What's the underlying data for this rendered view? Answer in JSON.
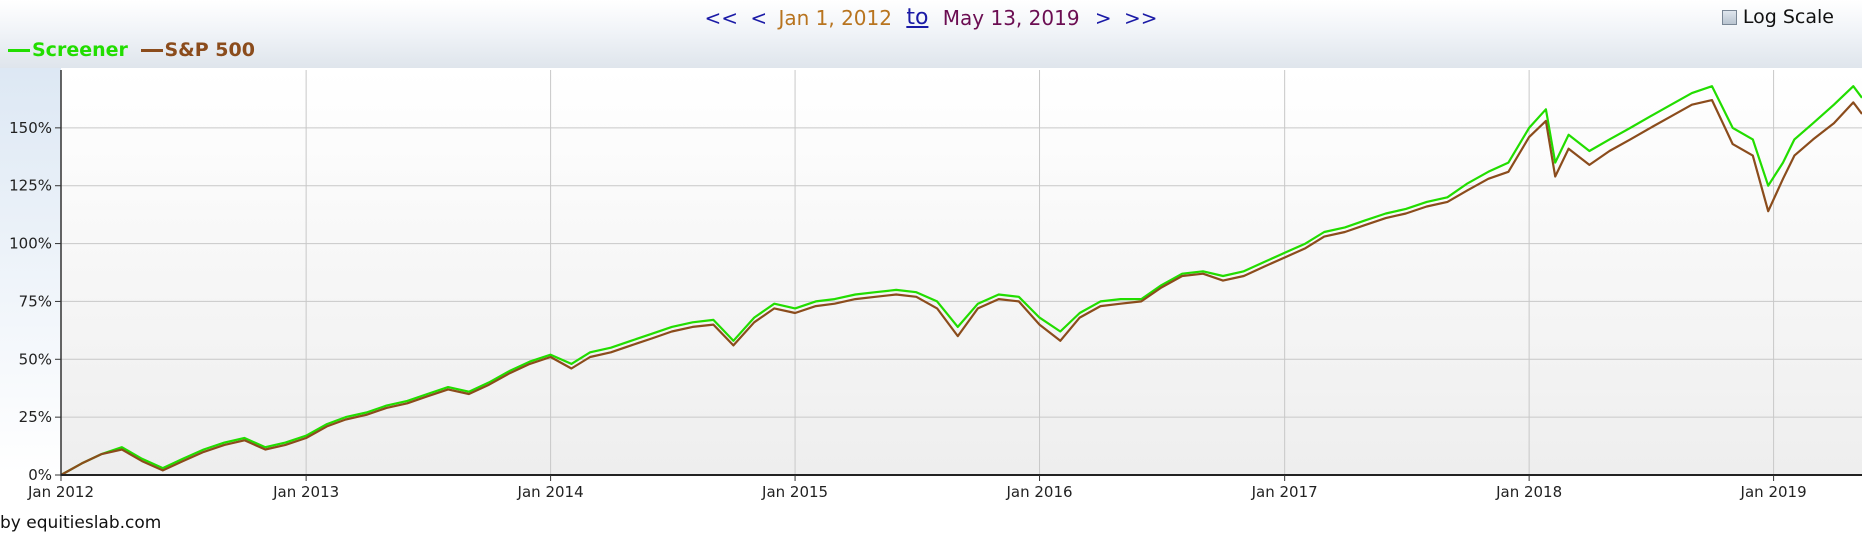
{
  "nav": {
    "first": "<<",
    "prev": "<",
    "start_date": "Jan 1, 2012",
    "to": "to",
    "end_date": "May 13, 2019",
    "next": ">",
    "last": ">>"
  },
  "log_scale": {
    "label": "Log Scale",
    "checked": false
  },
  "credit": "by equitieslab.com",
  "colors": {
    "screener": "#22dd00",
    "sp500": "#8b4c1c"
  },
  "chart_data": {
    "type": "line",
    "title": "",
    "xlabel": "",
    "ylabel": "",
    "x_ticks": [
      "Jan 2012",
      "Jan 2013",
      "Jan 2014",
      "Jan 2015",
      "Jan 2016",
      "Jan 2017",
      "Jan 2018",
      "Jan 2019"
    ],
    "y_ticks": [
      "0%",
      "25%",
      "50%",
      "75%",
      "100%",
      "125%",
      "150%"
    ],
    "ylim": [
      0,
      175
    ],
    "xlim": [
      "2012-01-01",
      "2019-05-13"
    ],
    "grid": true,
    "legend": "top-left",
    "series": [
      {
        "name": "Screener",
        "x": [
          "2012-01-01",
          "2012-02-01",
          "2012-03-01",
          "2012-04-01",
          "2012-05-01",
          "2012-06-01",
          "2012-07-01",
          "2012-08-01",
          "2012-09-01",
          "2012-10-01",
          "2012-11-01",
          "2012-12-01",
          "2013-01-01",
          "2013-02-01",
          "2013-03-01",
          "2013-04-01",
          "2013-05-01",
          "2013-06-01",
          "2013-07-01",
          "2013-08-01",
          "2013-09-01",
          "2013-10-01",
          "2013-11-01",
          "2013-12-01",
          "2014-01-01",
          "2014-02-01",
          "2014-03-01",
          "2014-04-01",
          "2014-05-01",
          "2014-06-01",
          "2014-07-01",
          "2014-08-01",
          "2014-09-01",
          "2014-10-01",
          "2014-11-01",
          "2014-12-01",
          "2015-01-01",
          "2015-02-01",
          "2015-03-01",
          "2015-04-01",
          "2015-05-01",
          "2015-06-01",
          "2015-07-01",
          "2015-08-01",
          "2015-09-01",
          "2015-10-01",
          "2015-11-01",
          "2015-12-01",
          "2016-01-01",
          "2016-02-01",
          "2016-03-01",
          "2016-04-01",
          "2016-05-01",
          "2016-06-01",
          "2016-07-01",
          "2016-08-01",
          "2016-09-01",
          "2016-10-01",
          "2016-11-01",
          "2016-12-01",
          "2017-01-01",
          "2017-02-01",
          "2017-03-01",
          "2017-04-01",
          "2017-05-01",
          "2017-06-01",
          "2017-07-01",
          "2017-08-01",
          "2017-09-01",
          "2017-10-01",
          "2017-11-01",
          "2017-12-01",
          "2018-01-01",
          "2018-01-26",
          "2018-02-09",
          "2018-03-01",
          "2018-04-01",
          "2018-05-01",
          "2018-06-01",
          "2018-07-01",
          "2018-08-01",
          "2018-09-01",
          "2018-10-01",
          "2018-11-01",
          "2018-12-01",
          "2018-12-24",
          "2019-01-15",
          "2019-02-01",
          "2019-03-01",
          "2019-04-01",
          "2019-04-30",
          "2019-05-13"
        ],
        "values": [
          0,
          5,
          9,
          12,
          7,
          3,
          7,
          11,
          14,
          16,
          12,
          14,
          17,
          22,
          25,
          27,
          30,
          32,
          35,
          38,
          36,
          40,
          45,
          49,
          52,
          48,
          53,
          55,
          58,
          61,
          64,
          66,
          67,
          58,
          68,
          74,
          72,
          75,
          76,
          78,
          79,
          80,
          79,
          75,
          64,
          74,
          78,
          77,
          68,
          62,
          70,
          75,
          76,
          76,
          82,
          87,
          88,
          86,
          88,
          92,
          96,
          100,
          105,
          107,
          110,
          113,
          115,
          118,
          120,
          126,
          131,
          135,
          150,
          158,
          135,
          147,
          140,
          145,
          150,
          155,
          160,
          165,
          168,
          150,
          145,
          125,
          135,
          145,
          152,
          160,
          168,
          163
        ]
      },
      {
        "name": "S&P 500",
        "x": [
          "2012-01-01",
          "2012-02-01",
          "2012-03-01",
          "2012-04-01",
          "2012-05-01",
          "2012-06-01",
          "2012-07-01",
          "2012-08-01",
          "2012-09-01",
          "2012-10-01",
          "2012-11-01",
          "2012-12-01",
          "2013-01-01",
          "2013-02-01",
          "2013-03-01",
          "2013-04-01",
          "2013-05-01",
          "2013-06-01",
          "2013-07-01",
          "2013-08-01",
          "2013-09-01",
          "2013-10-01",
          "2013-11-01",
          "2013-12-01",
          "2014-01-01",
          "2014-02-01",
          "2014-03-01",
          "2014-04-01",
          "2014-05-01",
          "2014-06-01",
          "2014-07-01",
          "2014-08-01",
          "2014-09-01",
          "2014-10-01",
          "2014-11-01",
          "2014-12-01",
          "2015-01-01",
          "2015-02-01",
          "2015-03-01",
          "2015-04-01",
          "2015-05-01",
          "2015-06-01",
          "2015-07-01",
          "2015-08-01",
          "2015-09-01",
          "2015-10-01",
          "2015-11-01",
          "2015-12-01",
          "2016-01-01",
          "2016-02-01",
          "2016-03-01",
          "2016-04-01",
          "2016-05-01",
          "2016-06-01",
          "2016-07-01",
          "2016-08-01",
          "2016-09-01",
          "2016-10-01",
          "2016-11-01",
          "2016-12-01",
          "2017-01-01",
          "2017-02-01",
          "2017-03-01",
          "2017-04-01",
          "2017-05-01",
          "2017-06-01",
          "2017-07-01",
          "2017-08-01",
          "2017-09-01",
          "2017-10-01",
          "2017-11-01",
          "2017-12-01",
          "2018-01-01",
          "2018-01-26",
          "2018-02-09",
          "2018-03-01",
          "2018-04-01",
          "2018-05-01",
          "2018-06-01",
          "2018-07-01",
          "2018-08-01",
          "2018-09-01",
          "2018-10-01",
          "2018-11-01",
          "2018-12-01",
          "2018-12-24",
          "2019-01-15",
          "2019-02-01",
          "2019-03-01",
          "2019-04-01",
          "2019-04-30",
          "2019-05-13"
        ],
        "values": [
          0,
          5,
          9,
          11,
          6,
          2,
          6,
          10,
          13,
          15,
          11,
          13,
          16,
          21,
          24,
          26,
          29,
          31,
          34,
          37,
          35,
          39,
          44,
          48,
          51,
          46,
          51,
          53,
          56,
          59,
          62,
          64,
          65,
          56,
          66,
          72,
          70,
          73,
          74,
          76,
          77,
          78,
          77,
          72,
          60,
          72,
          76,
          75,
          65,
          58,
          68,
          73,
          74,
          75,
          81,
          86,
          87,
          84,
          86,
          90,
          94,
          98,
          103,
          105,
          108,
          111,
          113,
          116,
          118,
          123,
          128,
          131,
          146,
          153,
          129,
          141,
          134,
          140,
          145,
          150,
          155,
          160,
          162,
          143,
          138,
          114,
          128,
          138,
          145,
          152,
          161,
          156
        ]
      }
    ]
  }
}
